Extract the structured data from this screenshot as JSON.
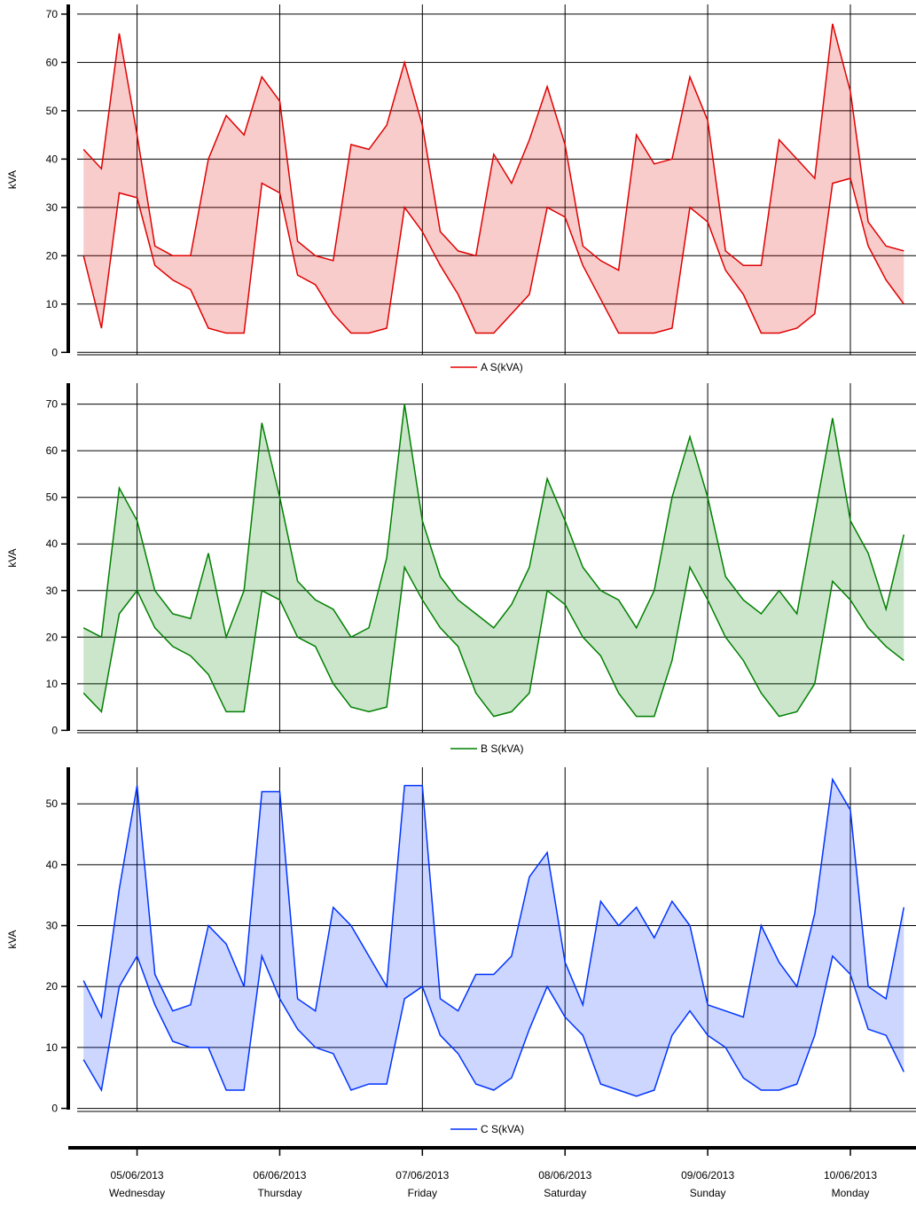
{
  "chart_data": [
    {
      "type": "line",
      "ylabel": "kVA",
      "ylim": [
        -0.5,
        72
      ],
      "yticks": [
        0,
        10,
        20,
        30,
        40,
        50,
        60,
        70
      ],
      "xlim": [
        -0.42,
        5.46
      ],
      "xticks": [
        0,
        1,
        2,
        3,
        4,
        5
      ],
      "grid": true,
      "x": [
        -0.375,
        -0.25,
        -0.125,
        0,
        0.125,
        0.25,
        0.375,
        0.5,
        0.625,
        0.75,
        0.875,
        1,
        1.125,
        1.25,
        1.375,
        1.5,
        1.625,
        1.75,
        1.875,
        2,
        2.125,
        2.25,
        2.375,
        2.5,
        2.625,
        2.75,
        2.875,
        3,
        3.125,
        3.25,
        3.375,
        3.5,
        3.625,
        3.75,
        3.875,
        4,
        4.125,
        4.25,
        4.375,
        4.5,
        4.625,
        4.75,
        4.875,
        5,
        5.125,
        5.25,
        5.375
      ],
      "series": [
        {
          "name": "A S(kVA)",
          "color": "#e00000",
          "values": [
            42,
            38,
            66,
            45,
            22,
            20,
            20,
            40,
            49,
            45,
            57,
            52,
            23,
            20,
            19,
            43,
            42,
            47,
            60,
            47,
            25,
            21,
            20,
            41,
            35,
            44,
            55,
            43,
            22,
            19,
            17,
            45,
            39,
            40,
            57,
            48,
            21,
            18,
            18,
            44,
            40,
            36,
            68,
            54,
            27,
            22,
            21
          ],
          "low_values": [
            20,
            5,
            33,
            32,
            18,
            15,
            13,
            5,
            4,
            4,
            35,
            33,
            16,
            14,
            8,
            4,
            4,
            5,
            30,
            25,
            18,
            12,
            4,
            4,
            8,
            12,
            30,
            28,
            18,
            11,
            4,
            4,
            4,
            5,
            30,
            27,
            17,
            12,
            4,
            4,
            5,
            8,
            35,
            36,
            22,
            15,
            10
          ]
        }
      ]
    },
    {
      "type": "line",
      "ylabel": "kVA",
      "ylim": [
        -0.5,
        74.5
      ],
      "yticks": [
        0,
        10,
        20,
        30,
        40,
        50,
        60,
        70
      ],
      "xlim": [
        -0.42,
        5.46
      ],
      "xticks": [
        0,
        1,
        2,
        3,
        4,
        5
      ],
      "grid": true,
      "x": [
        -0.375,
        -0.25,
        -0.125,
        0,
        0.125,
        0.25,
        0.375,
        0.5,
        0.625,
        0.75,
        0.875,
        1,
        1.125,
        1.25,
        1.375,
        1.5,
        1.625,
        1.75,
        1.875,
        2,
        2.125,
        2.25,
        2.375,
        2.5,
        2.625,
        2.75,
        2.875,
        3,
        3.125,
        3.25,
        3.375,
        3.5,
        3.625,
        3.75,
        3.875,
        4,
        4.125,
        4.25,
        4.375,
        4.5,
        4.625,
        4.75,
        4.875,
        5,
        5.125,
        5.25,
        5.375
      ],
      "series": [
        {
          "name": "B S(kVA)",
          "color": "#008000",
          "values": [
            22,
            20,
            52,
            45,
            30,
            25,
            24,
            38,
            20,
            30,
            66,
            50,
            32,
            28,
            26,
            20,
            22,
            37,
            70,
            45,
            33,
            28,
            25,
            22,
            27,
            35,
            54,
            45,
            35,
            30,
            28,
            22,
            30,
            50,
            63,
            50,
            33,
            28,
            25,
            30,
            25,
            46,
            67,
            45,
            38,
            26,
            42
          ],
          "low_values": [
            8,
            4,
            25,
            30,
            22,
            18,
            16,
            12,
            4,
            4,
            30,
            28,
            20,
            18,
            10,
            5,
            4,
            5,
            35,
            28,
            22,
            18,
            8,
            3,
            4,
            8,
            30,
            27,
            20,
            16,
            8,
            3,
            3,
            15,
            35,
            28,
            20,
            15,
            8,
            3,
            4,
            10,
            32,
            28,
            22,
            18,
            15
          ]
        }
      ]
    },
    {
      "type": "line",
      "ylabel": "kVA",
      "ylim": [
        -0.5,
        56
      ],
      "yticks": [
        0,
        10,
        20,
        30,
        40,
        50
      ],
      "xlim": [
        -0.42,
        5.46
      ],
      "grid": true,
      "xticks": [
        {
          "value": 0,
          "label": "05/06/2013",
          "day": "Wednesday"
        },
        {
          "value": 1,
          "label": "06/06/2013",
          "day": "Thursday"
        },
        {
          "value": 2,
          "label": "07/06/2013",
          "day": "Friday"
        },
        {
          "value": 3,
          "label": "08/06/2013",
          "day": "Saturday"
        },
        {
          "value": 4,
          "label": "09/06/2013",
          "day": "Sunday"
        },
        {
          "value": 5,
          "label": "10/06/2013",
          "day": "Monday"
        }
      ],
      "x": [
        -0.375,
        -0.25,
        -0.125,
        0,
        0.125,
        0.25,
        0.375,
        0.5,
        0.625,
        0.75,
        0.875,
        1,
        1.125,
        1.25,
        1.375,
        1.5,
        1.625,
        1.75,
        1.875,
        2,
        2.125,
        2.25,
        2.375,
        2.5,
        2.625,
        2.75,
        2.875,
        3,
        3.125,
        3.25,
        3.375,
        3.5,
        3.625,
        3.75,
        3.875,
        4,
        4.125,
        4.25,
        4.375,
        4.5,
        4.625,
        4.75,
        4.875,
        5,
        5.125,
        5.25,
        5.375
      ],
      "series": [
        {
          "name": "C S(kVA)",
          "color": "#0033ff",
          "values": [
            21,
            15,
            36,
            53,
            22,
            16,
            17,
            30,
            27,
            20,
            52,
            52,
            18,
            16,
            33,
            30,
            25,
            20,
            53,
            53,
            18,
            16,
            22,
            22,
            25,
            38,
            42,
            24,
            17,
            34,
            30,
            33,
            28,
            34,
            30,
            17,
            16,
            15,
            30,
            24,
            20,
            32,
            54,
            49,
            20,
            18,
            33
          ],
          "low_values": [
            8,
            3,
            20,
            25,
            17,
            11,
            10,
            10,
            3,
            3,
            25,
            18,
            13,
            10,
            9,
            3,
            4,
            4,
            18,
            20,
            12,
            9,
            4,
            3,
            5,
            13,
            20,
            15,
            12,
            4,
            3,
            2,
            3,
            12,
            16,
            12,
            10,
            5,
            3,
            3,
            4,
            12,
            25,
            22,
            13,
            12,
            6
          ]
        }
      ]
    }
  ]
}
